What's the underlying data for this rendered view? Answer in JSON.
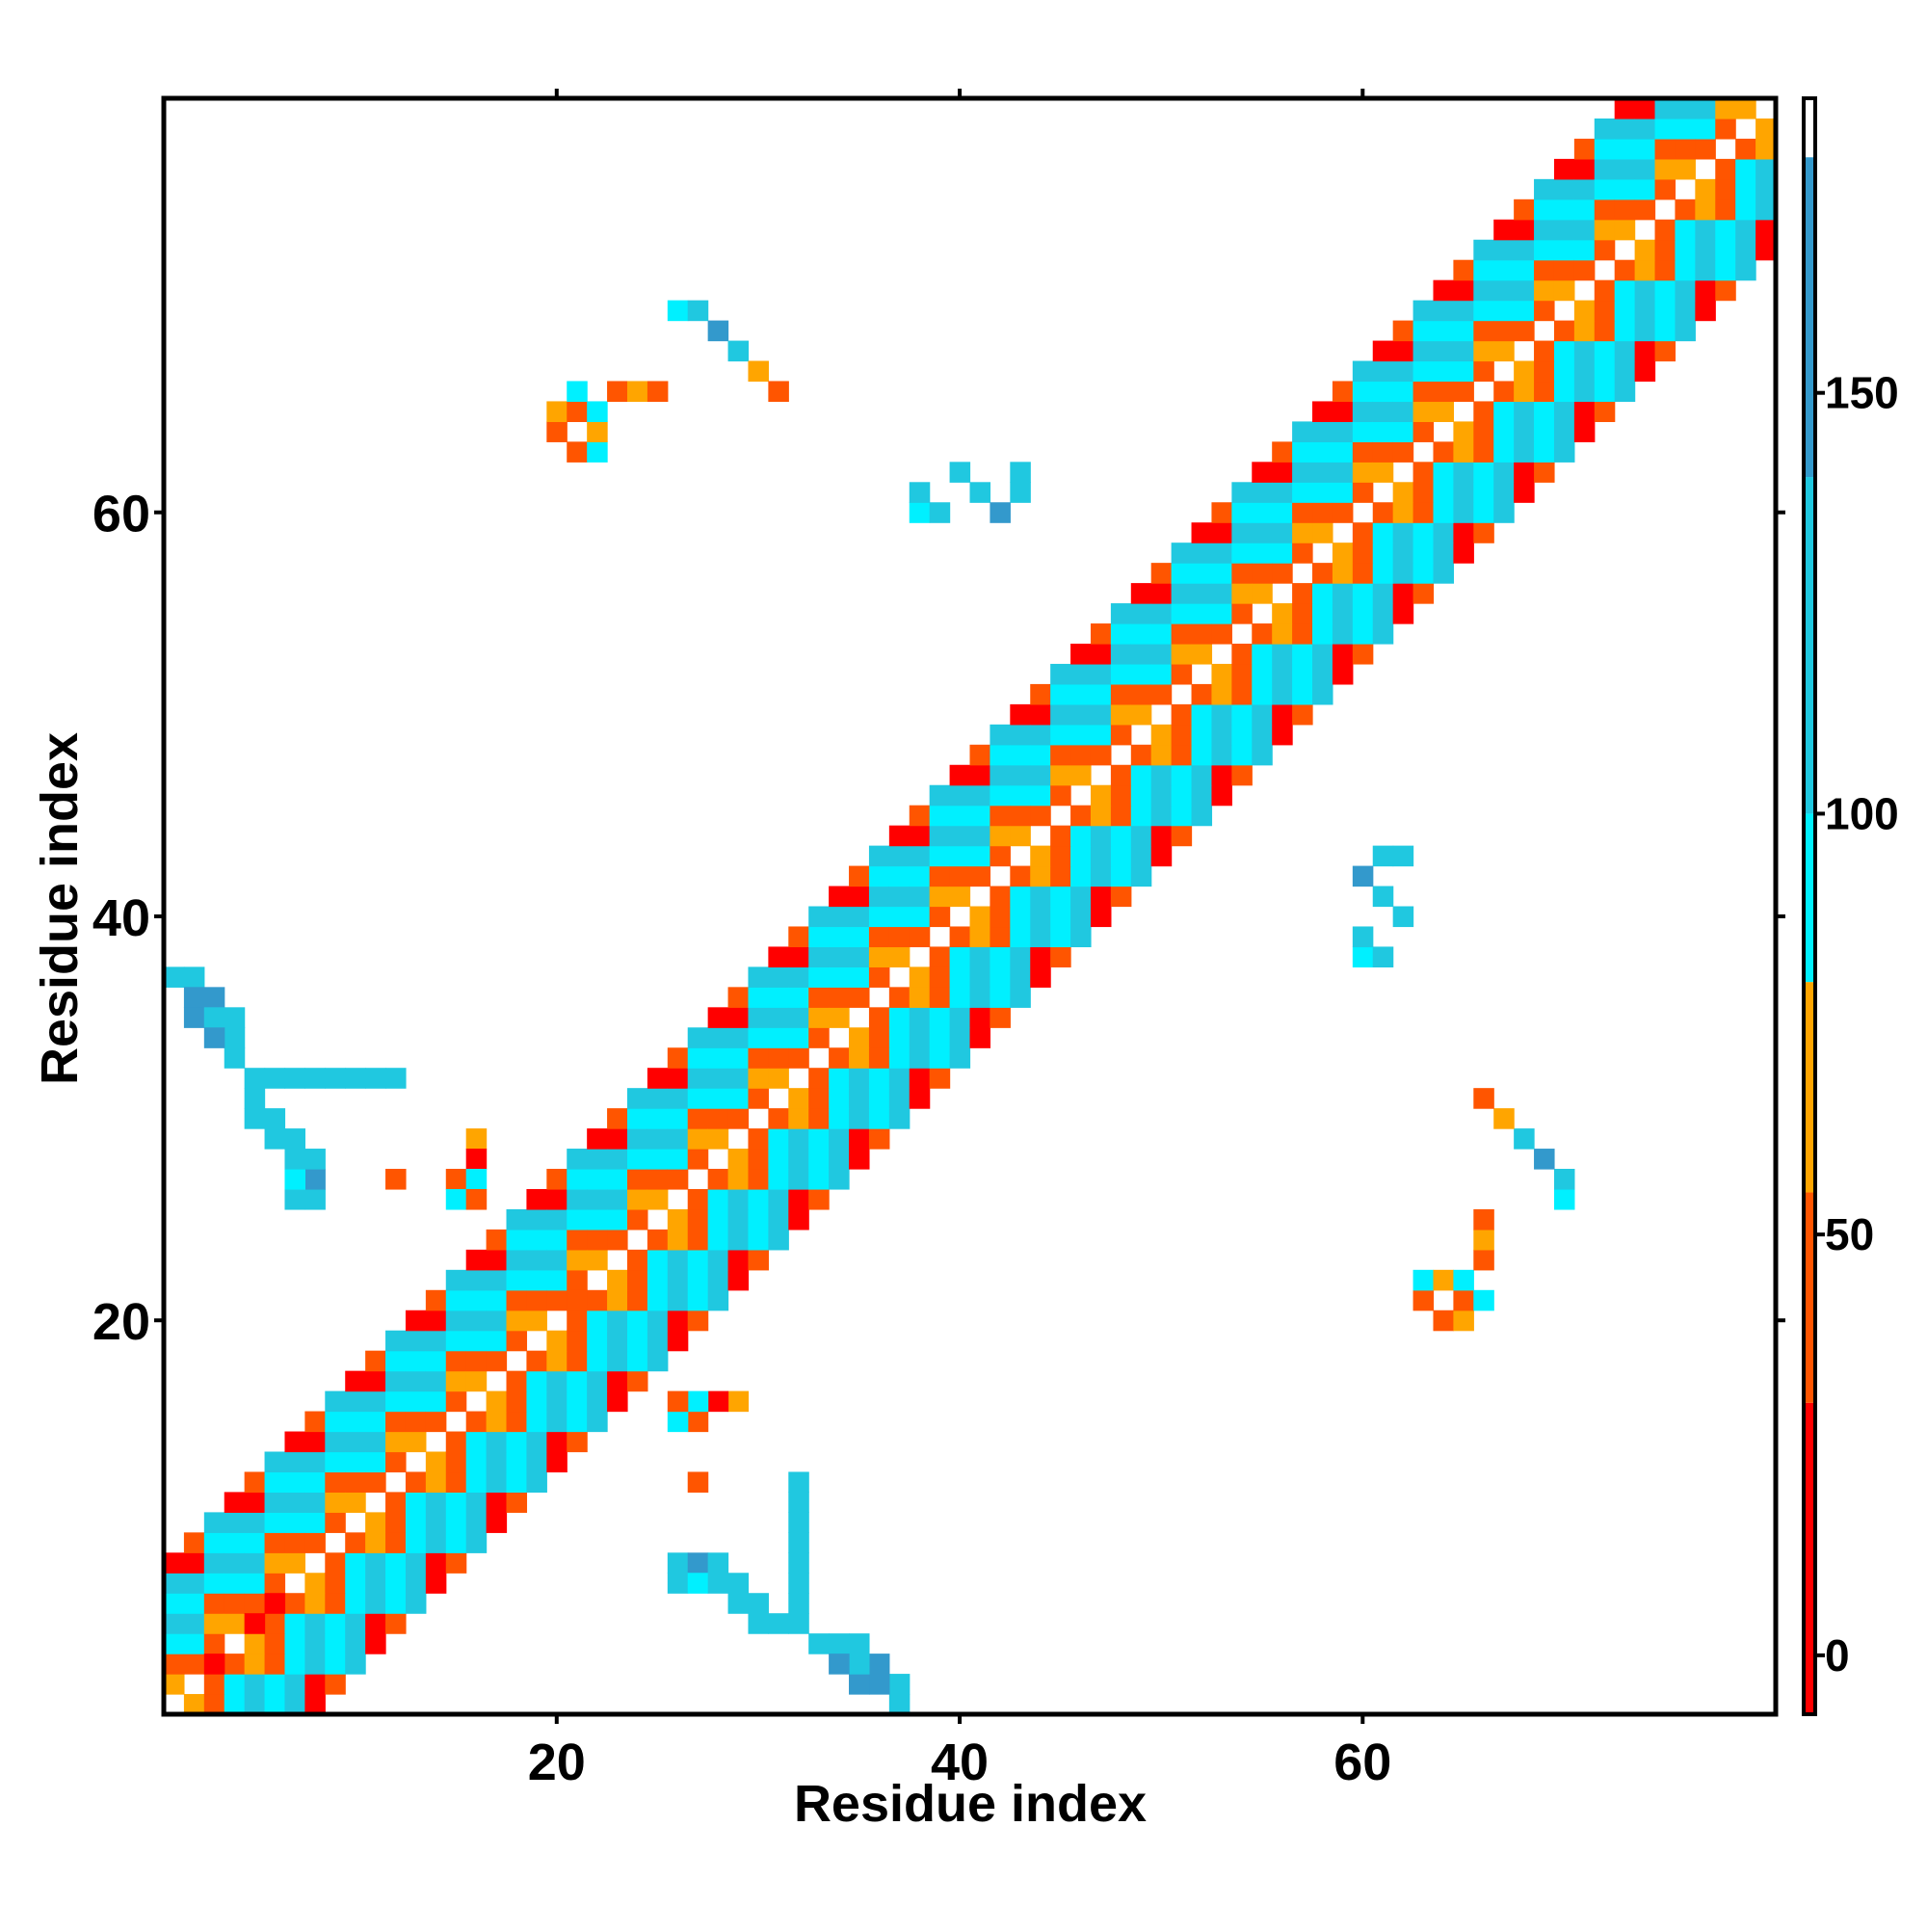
{
  "chart_data": {
    "type": "heatmap",
    "title": "",
    "xlabel": "Residue index",
    "ylabel": "Residue index",
    "xlim": [
      0.5,
      80.5
    ],
    "ylim": [
      0.5,
      80.5
    ],
    "x_ticks": [
      20,
      40,
      60
    ],
    "y_ticks": [
      20,
      40,
      60
    ],
    "x_tick_labels": [
      "20",
      "40",
      "60"
    ],
    "y_tick_labels": [
      "20",
      "40",
      "60"
    ],
    "grid": false,
    "colorbar": {
      "range": [
        -7,
        185
      ],
      "ticks": [
        0,
        50,
        100,
        150
      ],
      "tick_labels": [
        "0",
        "50",
        "100",
        "150"
      ],
      "placement": "right",
      "bands": [
        {
          "from": -7,
          "to": 30,
          "color": "#ff0000"
        },
        {
          "from": 30,
          "to": 55,
          "color": "#ff5500"
        },
        {
          "from": 55,
          "to": 80,
          "color": "#ffa500"
        },
        {
          "from": 80,
          "to": 100,
          "color": "#00f0ff"
        },
        {
          "from": 100,
          "to": 140,
          "color": "#20c8e0"
        },
        {
          "from": 140,
          "to": 178,
          "color": "#3399cc"
        },
        {
          "from": 178,
          "to": 185,
          "color": "#ffffff"
        }
      ]
    },
    "value_legend": {
      "1": 15,
      "2": 45,
      "3": 65,
      "4": 90,
      "5": 120,
      "6": 160
    },
    "cells": [
      [
        20,
        64,
        2
      ],
      [
        20,
        65,
        3
      ],
      [
        21,
        63,
        2
      ],
      [
        21,
        65,
        2
      ],
      [
        21,
        66,
        4
      ],
      [
        22,
        63,
        4
      ],
      [
        22,
        64,
        3
      ],
      [
        22,
        65,
        4
      ],
      [
        23,
        66,
        2
      ],
      [
        24,
        66,
        3
      ],
      [
        25,
        66,
        2
      ],
      [
        26,
        70,
        4
      ],
      [
        27,
        70,
        5
      ],
      [
        28,
        69,
        6
      ],
      [
        29,
        68,
        5
      ],
      [
        30,
        67,
        3
      ],
      [
        31,
        66,
        2
      ],
      [
        38,
        60,
        4
      ],
      [
        38,
        61,
        5
      ],
      [
        39,
        60,
        5
      ],
      [
        40,
        62,
        5
      ],
      [
        41,
        61,
        5
      ],
      [
        42,
        60,
        6
      ],
      [
        43,
        61,
        5
      ],
      [
        43,
        62,
        5
      ],
      [
        3,
        3,
        1
      ],
      [
        3,
        4,
        2
      ],
      [
        4,
        3,
        2
      ],
      [
        5,
        5,
        1
      ],
      [
        6,
        6,
        1
      ],
      [
        29,
        16,
        3
      ],
      [
        28,
        16,
        1
      ],
      [
        27,
        12,
        2
      ],
      [
        27,
        15,
        2
      ],
      [
        27,
        16,
        4
      ],
      [
        26,
        15,
        4
      ],
      [
        26,
        16,
        2
      ],
      [
        24,
        19,
        5
      ],
      [
        24,
        20,
        5
      ],
      [
        24,
        21,
        5
      ],
      [
        23,
        19,
        4
      ],
      [
        22,
        19,
        2
      ],
      [
        22,
        20,
        4
      ],
      [
        21,
        20,
        2
      ],
      [
        21,
        21,
        2
      ],
      [
        37,
        1,
        5
      ],
      [
        37,
        2,
        5
      ],
      [
        36,
        2,
        6
      ],
      [
        36,
        3,
        6
      ],
      [
        35,
        2,
        6
      ],
      [
        35,
        3,
        5
      ],
      [
        35,
        4,
        5
      ],
      [
        34,
        4,
        5
      ],
      [
        33,
        4,
        5
      ],
      [
        32,
        5,
        5
      ],
      [
        32,
        6,
        5
      ],
      [
        32,
        7,
        5
      ],
      [
        32,
        8,
        5
      ],
      [
        32,
        9,
        5
      ],
      [
        32,
        10,
        5
      ],
      [
        32,
        11,
        5
      ],
      [
        32,
        12,
        5
      ],
      [
        8,
        26,
        5
      ],
      [
        8,
        27,
        6
      ],
      [
        8,
        28,
        5
      ],
      [
        7,
        26,
        5
      ],
      [
        7,
        27,
        4
      ],
      [
        7,
        28,
        5
      ],
      [
        7,
        29,
        5
      ],
      [
        6,
        29,
        5
      ],
      [
        6,
        30,
        5
      ],
      [
        5,
        30,
        5
      ],
      [
        5,
        31,
        5
      ],
      [
        4,
        33,
        5
      ],
      [
        4,
        34,
        5
      ],
      [
        3,
        34,
        6
      ],
      [
        3,
        35,
        6
      ],
      [
        2,
        35,
        5
      ],
      [
        2,
        36,
        4
      ],
      [
        2,
        37,
        4
      ],
      [
        1,
        37,
        5
      ]
    ]
  }
}
